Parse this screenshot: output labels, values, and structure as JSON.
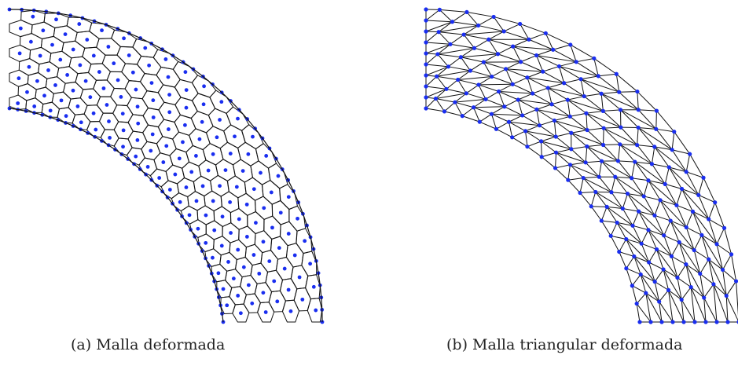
{
  "figures": [
    {
      "label": "(a)",
      "caption": "Malla deformada",
      "mesh_type": "polygonal"
    },
    {
      "label": "(b)",
      "caption": "Malla triangular deformada",
      "mesh_type": "triangular"
    }
  ],
  "colors": {
    "node": "#1a2ef0",
    "edge": "#111111",
    "background": "#ffffff"
  }
}
